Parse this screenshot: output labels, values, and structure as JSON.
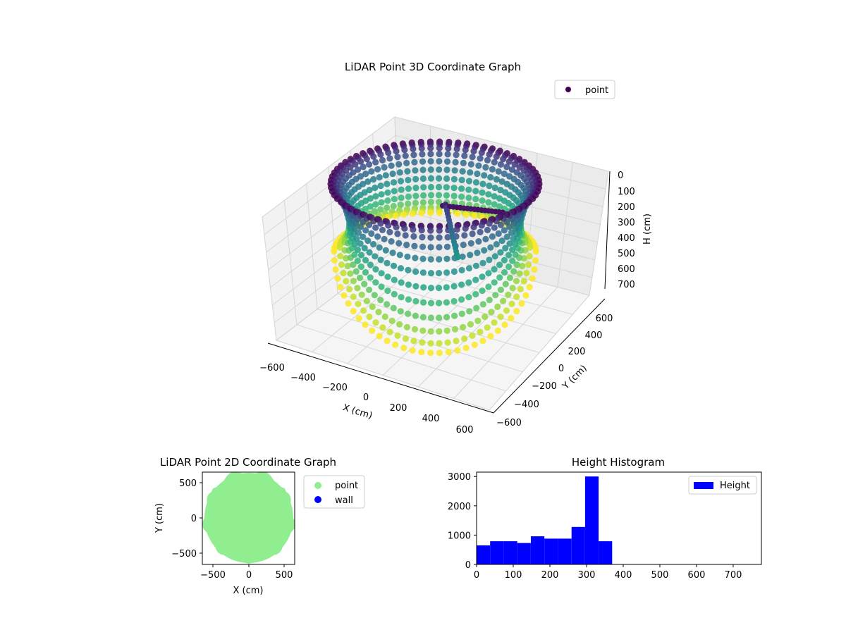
{
  "colors": {
    "viridis_dark": "#440154",
    "viridis_mid": "#21918c",
    "viridis_light": "#fde725",
    "point_2d": "#90ee90",
    "wall_2d": "#0000ff",
    "histogram": "#0000ff"
  },
  "chart_data": [
    {
      "type": "scatter",
      "subtype": "3d-scatter",
      "title": "LiDAR Point 3D Coordinate Graph",
      "xlabel": "X (cm)",
      "ylabel": "Y (cm)",
      "zlabel": "H (cm)",
      "x_ticks": [
        "−600",
        "−400",
        "−200",
        "0",
        "200",
        "400",
        "600"
      ],
      "y_ticks": [
        "600",
        "400",
        "200",
        "0",
        "−200",
        "−400",
        "−600"
      ],
      "z_ticks": [
        "0",
        "100",
        "200",
        "300",
        "400",
        "500",
        "600",
        "700"
      ],
      "xlim": [
        -650,
        650
      ],
      "ylim": [
        -650,
        650
      ],
      "zlim": [
        0,
        760
      ],
      "z_inverted": true,
      "colormap": "viridis",
      "series": [
        {
          "name": "point"
        }
      ],
      "legend_position": "top-right",
      "grid": true,
      "shape": "ring of vertical arcs, radius ~550 cm, heights 0–740 cm"
    },
    {
      "type": "scatter",
      "title": "LiDAR Point 2D Coordinate Graph",
      "xlabel": "X (cm)",
      "ylabel": "Y (cm)",
      "x_ticks": [
        "−500",
        "0",
        "500"
      ],
      "y_ticks": [
        "500",
        "0",
        "−500"
      ],
      "xlim": [
        -650,
        650
      ],
      "ylim": [
        -650,
        650
      ],
      "series": [
        {
          "name": "point",
          "color": "#90ee90",
          "shape": "filled disk radius ~600 cm"
        },
        {
          "name": "wall",
          "color": "#0000ff",
          "points": []
        }
      ],
      "legend_position": "outside right"
    },
    {
      "type": "bar",
      "subtype": "histogram",
      "title": "Height Histogram",
      "series": [
        {
          "name": "Height",
          "color": "#0000ff"
        }
      ],
      "bin_edges": [
        0,
        37,
        74,
        111,
        148,
        185,
        222,
        259,
        296,
        333,
        370,
        407,
        444,
        481,
        518,
        555,
        592,
        629,
        666,
        703,
        740
      ],
      "values": [
        650,
        790,
        790,
        730,
        960,
        880,
        880,
        1280,
        3000,
        790,
        0,
        0,
        0,
        0,
        0,
        0,
        0,
        0,
        0,
        0
      ],
      "x_ticks": [
        "0",
        "100",
        "200",
        "300",
        "400",
        "500",
        "600",
        "700"
      ],
      "y_ticks": [
        "0",
        "1000",
        "2000",
        "3000"
      ],
      "xlim": [
        0,
        777
      ],
      "ylim": [
        0,
        3150
      ],
      "legend_position": "upper right"
    }
  ]
}
